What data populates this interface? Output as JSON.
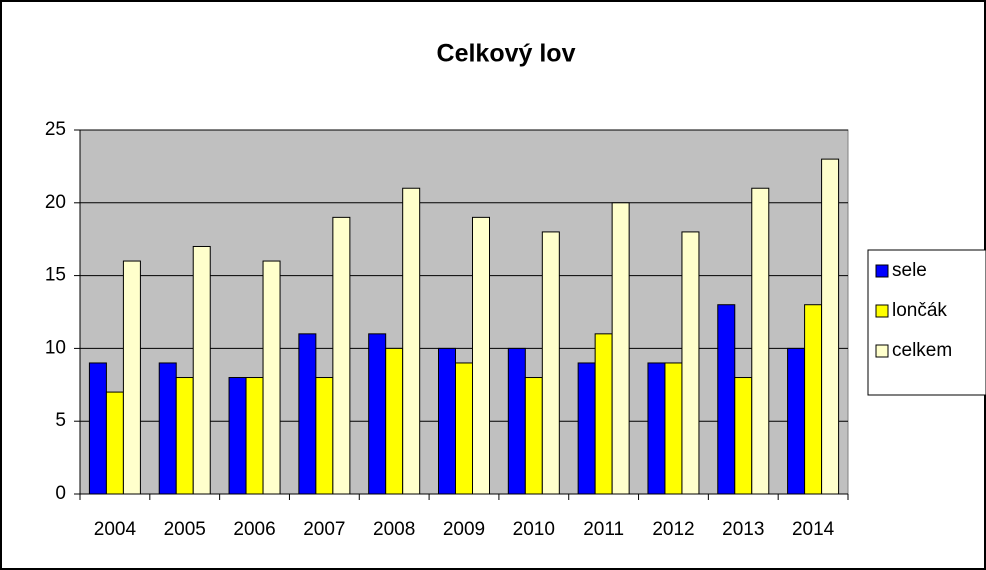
{
  "chart_data": {
    "type": "bar",
    "title": "Celkový lov",
    "categories": [
      "2004",
      "2005",
      "2006",
      "2007",
      "2008",
      "2009",
      "2010",
      "2011",
      "2012",
      "2013",
      "2014"
    ],
    "series": [
      {
        "name": "sele",
        "color": "#0000ff",
        "values": [
          9,
          9,
          8,
          11,
          11,
          10,
          10,
          9,
          9,
          13,
          10
        ]
      },
      {
        "name": "lončák",
        "color": "#ffff00",
        "values": [
          7,
          8,
          8,
          8,
          10,
          9,
          8,
          11,
          9,
          8,
          13
        ]
      },
      {
        "name": "celkem",
        "color": "#ffffcc",
        "values": [
          16,
          17,
          16,
          19,
          21,
          19,
          18,
          20,
          18,
          21,
          23
        ]
      }
    ],
    "ylim": [
      0,
      25
    ],
    "yticks": [
      0,
      5,
      10,
      15,
      20,
      25
    ],
    "grid": true,
    "legend": "right"
  }
}
